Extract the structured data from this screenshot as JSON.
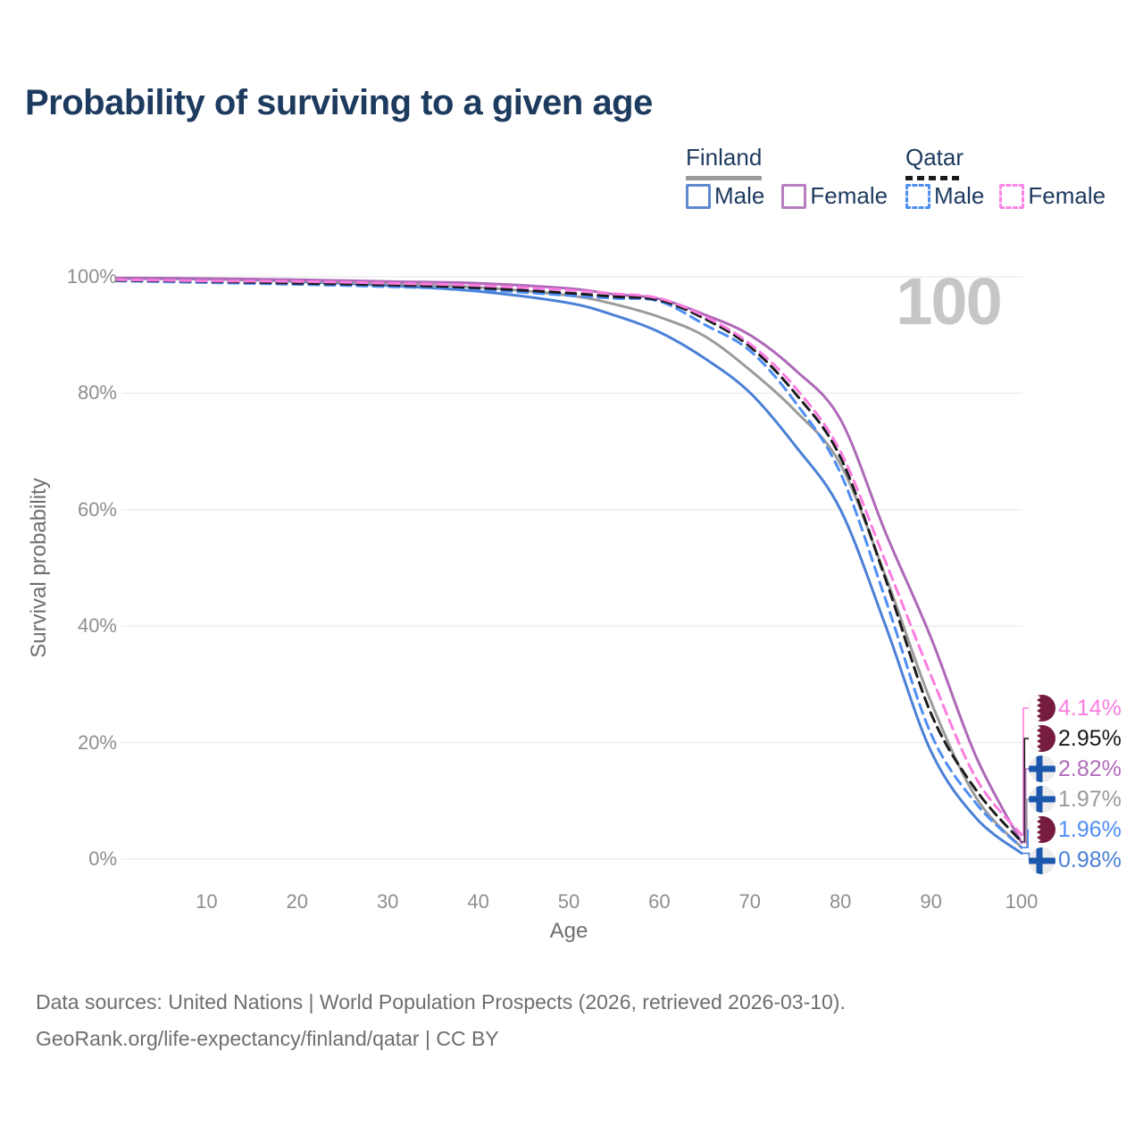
{
  "title": "Probability of surviving to a given age",
  "watermark_age": "100",
  "legend": {
    "groups": [
      {
        "country": "Finland",
        "line_style": "solid",
        "items": [
          {
            "label": "Male",
            "color": "#5f88ce"
          },
          {
            "label": "Female",
            "color": "#b77fc0"
          }
        ]
      },
      {
        "country": "Qatar",
        "line_style": "dashed",
        "items": [
          {
            "label": "Male",
            "color": "#4d8ff2"
          },
          {
            "label": "Female",
            "color": "#fb85e6"
          }
        ]
      }
    ]
  },
  "chart_data": {
    "type": "line",
    "title": "Probability of surviving to a given age",
    "xlabel": "Age",
    "ylabel": "Survival probability",
    "xlim": [
      0,
      100
    ],
    "ylim": [
      0,
      100
    ],
    "grid": "horizontal",
    "legend_position": "top-right",
    "x_ticks": [
      10,
      20,
      30,
      40,
      50,
      60,
      70,
      80,
      90,
      100
    ],
    "y_ticks": [
      {
        "value": 100,
        "label": "100%"
      },
      {
        "value": 80,
        "label": "80%"
      },
      {
        "value": 60,
        "label": "60%"
      },
      {
        "value": 40,
        "label": "40%"
      },
      {
        "value": 20,
        "label": "20%"
      },
      {
        "value": 0,
        "label": "0%"
      }
    ],
    "x": [
      0,
      10,
      20,
      30,
      40,
      50,
      55,
      60,
      65,
      70,
      75,
      80,
      85,
      90,
      95,
      100
    ],
    "series": [
      {
        "id": "finland-male",
        "country": "Finland",
        "sex": "male",
        "label": "Male",
        "color": "#4a80d6",
        "dash": "solid",
        "values": [
          99.7,
          99.6,
          99.2,
          98.5,
          97.5,
          95.5,
          93.4,
          90.5,
          86.0,
          80.1,
          71.0,
          60.0,
          40.0,
          18.5,
          7.0,
          0.98
        ]
      },
      {
        "id": "finland-all",
        "country": "Finland",
        "sex": "all",
        "label": "Finland",
        "color": "#9b9b9b",
        "dash": "solid",
        "values": [
          99.75,
          99.65,
          99.35,
          98.85,
          98.2,
          96.8,
          95.3,
          93.1,
          89.8,
          84.0,
          77.0,
          67.8,
          48.5,
          27.0,
          10.5,
          1.97
        ]
      },
      {
        "id": "finland-female",
        "country": "Finland",
        "sex": "female",
        "label": "Female",
        "color": "#ae68b8",
        "dash": "solid",
        "values": [
          99.8,
          99.7,
          99.5,
          99.2,
          98.9,
          98.0,
          97.0,
          96.2,
          93.5,
          90.0,
          84.0,
          75.5,
          56.0,
          38.0,
          17.5,
          2.82
        ]
      },
      {
        "id": "qatar-male",
        "country": "Qatar",
        "sex": "male",
        "label": "Male",
        "color": "#4e8ef5",
        "dash": "dashed",
        "values": [
          99.3,
          99.0,
          98.7,
          98.3,
          97.8,
          96.8,
          96.3,
          95.8,
          91.8,
          87.3,
          78.5,
          66.3,
          44.5,
          21.5,
          9.5,
          1.96
        ]
      },
      {
        "id": "qatar-all",
        "country": "Qatar",
        "sex": "all",
        "label": "Qatar",
        "color": "#1b1b1b",
        "dash": "dashed",
        "values": [
          99.4,
          99.2,
          98.9,
          98.6,
          98.1,
          97.2,
          96.6,
          96.0,
          92.8,
          88.0,
          80.0,
          69.0,
          48.0,
          25.0,
          11.8,
          2.95
        ]
      },
      {
        "id": "qatar-female",
        "country": "Qatar",
        "sex": "female",
        "label": "Female",
        "color": "#fb7ce0",
        "dash": "dashed",
        "values": [
          99.5,
          99.3,
          99.2,
          98.9,
          98.5,
          97.7,
          97.1,
          96.3,
          93.2,
          88.5,
          81.0,
          70.0,
          51.0,
          31.5,
          13.8,
          4.14
        ]
      }
    ],
    "end_labels": [
      {
        "text": "4.14%",
        "series": "qatar-female",
        "country": "qatar",
        "color": "#fb7ce0"
      },
      {
        "text": "2.95%",
        "series": "qatar-all",
        "country": "qatar",
        "color": "#1a1a1a"
      },
      {
        "text": "2.82%",
        "series": "finland-female",
        "country": "finland",
        "color": "#b06cba"
      },
      {
        "text": "1.97%",
        "series": "finland-all",
        "country": "finland",
        "color": "#9a9a9a"
      },
      {
        "text": "1.96%",
        "series": "qatar-male",
        "country": "qatar",
        "color": "#4e8ef5"
      },
      {
        "text": "0.98%",
        "series": "finland-male",
        "country": "finland",
        "color": "#4a80d6"
      }
    ],
    "colors": {
      "gridline": "#ebebeb",
      "tick_text": "#8e8e8e",
      "finland_flag_blue": "#1b57ad",
      "qatar_flag_maroon": "#771c41"
    }
  },
  "footer": {
    "line1": "Data sources: United Nations | World Population Prospects (2026, retrieved 2026-03-10).",
    "line2": "GeoRank.org/life-expectancy/finland/qatar | CC BY"
  }
}
